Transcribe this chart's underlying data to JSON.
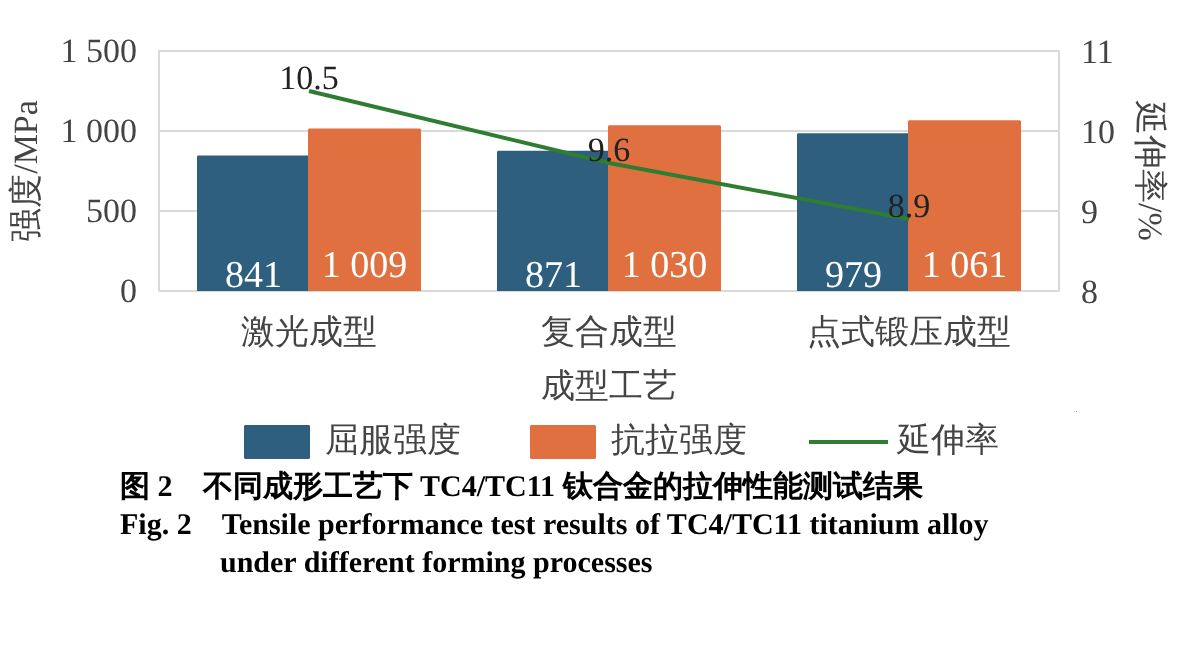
{
  "chart_data": {
    "type": "bar",
    "xlabel": "成型工艺",
    "ylabel": "强度/MPa",
    "y2label": "延伸率/%",
    "categories": [
      "激光成型",
      "复合成型",
      "点式锻压成型"
    ],
    "series": [
      {
        "name": "屈服强度",
        "color": "#2e5f7f",
        "values": [
          841,
          871,
          979
        ],
        "value_labels": [
          "841",
          "871",
          "979"
        ]
      },
      {
        "name": "抗拉强度",
        "color": "#e07040",
        "values": [
          1009,
          1030,
          1061
        ],
        "value_labels": [
          "1 009",
          "1 030",
          "1 061"
        ]
      },
      {
        "name": "延伸率",
        "type": "line",
        "axis": "y2",
        "color": "#2e7d32",
        "values": [
          10.5,
          9.6,
          8.9
        ],
        "value_labels": [
          "10.5",
          "9.6",
          "8.9"
        ]
      }
    ],
    "ylim": [
      0,
      1500
    ],
    "yticks": [
      0,
      500,
      {
        "value": 1000,
        "label": "1 000"
      },
      {
        "value": 1500,
        "label": "1 500"
      }
    ],
    "y2lim": [
      8,
      11
    ],
    "y2ticks": [
      8,
      9,
      10,
      11
    ],
    "grid": "y",
    "legend": "bottom",
    "annotations": [
      "图 2　不同成形工艺下 TC4/TC11 钛合金的拉伸性能测试结果",
      "Fig. 2　Tensile performance test results of TC4/TC11 titanium alloy under different forming processes"
    ]
  }
}
